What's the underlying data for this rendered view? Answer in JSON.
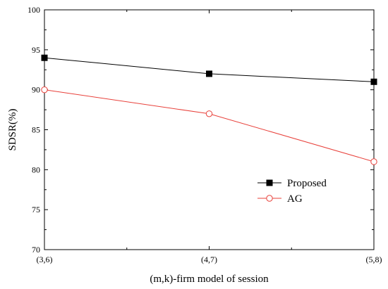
{
  "chart_data": {
    "type": "line",
    "categories": [
      "(3,6)",
      "(4,7)",
      "(5,8)"
    ],
    "series": [
      {
        "name": "Proposed",
        "values": [
          94,
          92,
          91
        ],
        "color": "#000000",
        "marker": "filled-square"
      },
      {
        "name": "AG",
        "values": [
          90,
          87,
          81
        ],
        "color": "#e8403a",
        "marker": "open-circle"
      }
    ],
    "xlabel": "(m,k)-firm model of session",
    "ylabel": "SDSR(%)",
    "ylim": [
      70,
      100
    ],
    "yticks": [
      70,
      75,
      80,
      85,
      90,
      95,
      100
    ],
    "grid": false,
    "legend_position": "bottom-right"
  }
}
